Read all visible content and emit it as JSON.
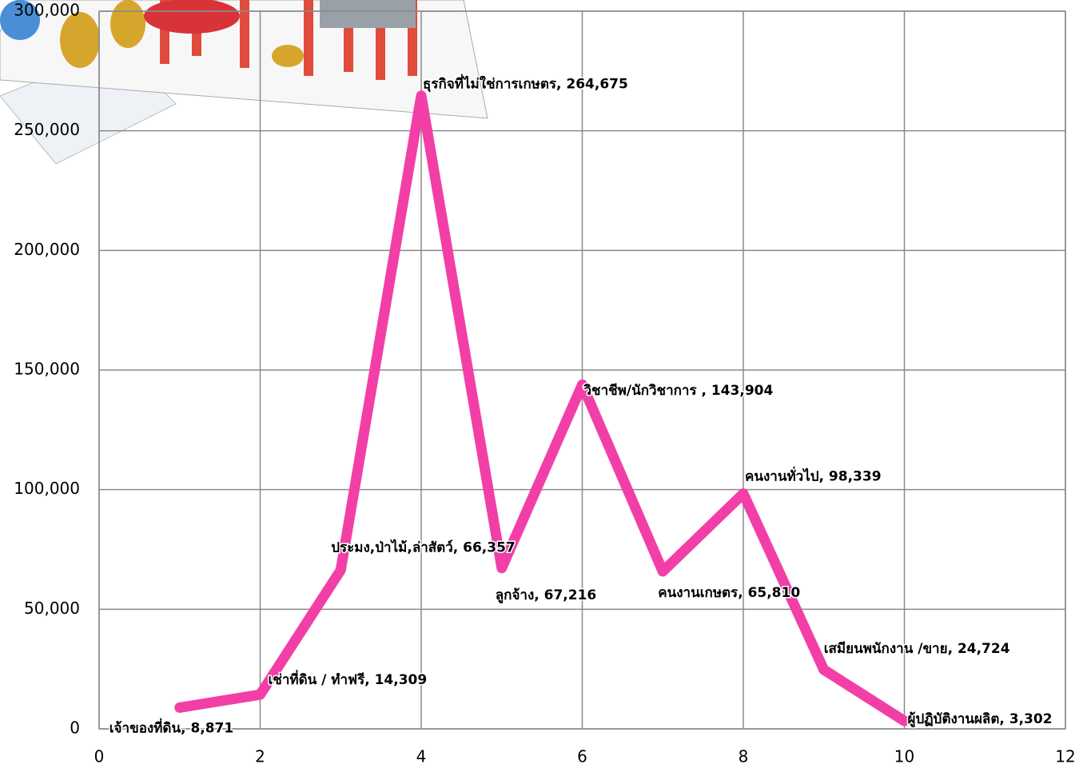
{
  "chart_data": {
    "type": "line",
    "x": [
      1,
      2,
      3,
      4,
      5,
      6,
      7,
      8,
      9,
      10
    ],
    "series": [
      {
        "color": "#f23fa8",
        "values": [
          8871,
          14309,
          66357,
          264675,
          67216,
          143904,
          65810,
          98339,
          24724,
          3302
        ],
        "value_labels": [
          "เจ้าของที่ดิน, 8,871",
          "เช่าที่ดิน / ทำฟรี, 14,309",
          "ประมง,ป่าไม้,ล่าสัตว์, 66,357",
          "ธุรกิจที่ไม่ใช่การเกษตร, 264,675",
          "ลูกจ้าง, 67,216",
          "วิชาชีพ/นักวิชาการ , 143,904",
          "คนงานเกษตร, 65,810",
          "คนงานทั่วไป, 98,339",
          "เสมียนพนักงาน /ขาย, 24,724",
          "ผู้ปฏิบัติงานผลิต, 3,302"
        ]
      }
    ],
    "xlim": [
      0,
      12
    ],
    "xticks": [
      0,
      2,
      4,
      6,
      8,
      10,
      12
    ],
    "ylim": [
      0,
      300000
    ],
    "yticks": [
      0,
      {
        "value": 50000,
        "label": "50,000"
      },
      {
        "value": 100000,
        "label": "100,000"
      },
      {
        "value": 150000,
        "label": "150,000"
      },
      {
        "value": 200000,
        "label": "200,000"
      },
      {
        "value": 250000,
        "label": "250,000"
      },
      {
        "value": 300000,
        "label": "300,000"
      }
    ],
    "grid": true
  }
}
